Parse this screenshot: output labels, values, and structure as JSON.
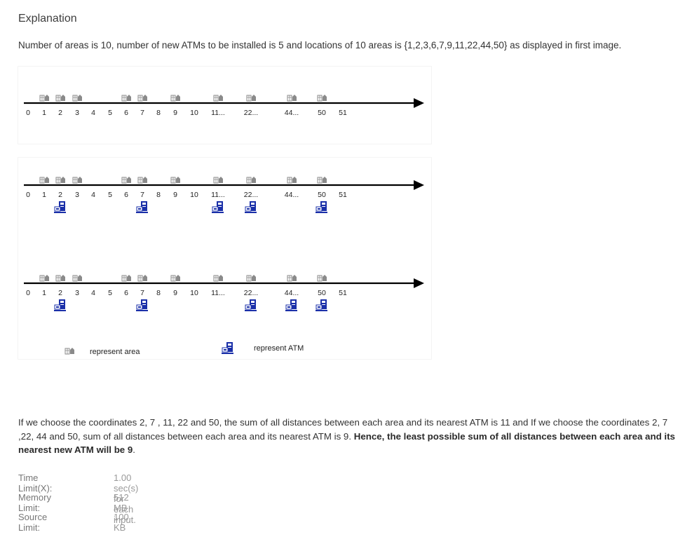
{
  "heading": "Explanation",
  "intro": "Number of areas is 10, number of new ATMs to be installed is 5 and locations of 10 areas is {1,2,3,6,7,9,11,22,44,50} as displayed in first image.",
  "number_line": {
    "ticks": [
      "0",
      "1",
      "2",
      "3",
      "4",
      "5",
      "6",
      "7",
      "8",
      "9",
      "10",
      "11...",
      "22...",
      "44...",
      "50",
      "51"
    ],
    "area_positions": [
      "1",
      "2",
      "3",
      "6",
      "7",
      "9",
      "11...",
      "22...",
      "44...",
      "50"
    ],
    "atm_sets": [
      [
        "2",
        "7",
        "11...",
        "22...",
        "50"
      ],
      [
        "2",
        "7",
        "22...",
        "44...",
        "50"
      ]
    ]
  },
  "legend": {
    "area_label": "represent area",
    "atm_label": "represent ATM",
    "area_icon": "building-icon",
    "atm_icon": "atm-icon"
  },
  "paragraph": {
    "text": "If we choose the coordinates 2, 7 , 11, 22 and 50, the sum of all distances between each area and its nearest ATM is 11 and If we choose the coordinates 2, 7 ,22, 44 and 50, sum of all distances between each area and its nearest ATM is 9. ",
    "bold": "Hence, the least possible sum of all distances between each area and its nearest new ATM will be 9",
    "end": "."
  },
  "limits": [
    {
      "label": "Time Limit(X):",
      "value": "1.00 sec(s) for each input."
    },
    {
      "label": "Memory Limit:",
      "value": "512 MB"
    },
    {
      "label": "Source Limit:",
      "value": "100 KB"
    }
  ],
  "colors": {
    "atm_blue": "#1a2fa8",
    "building_gray": "#8a8a8a",
    "axis": "#000000"
  }
}
